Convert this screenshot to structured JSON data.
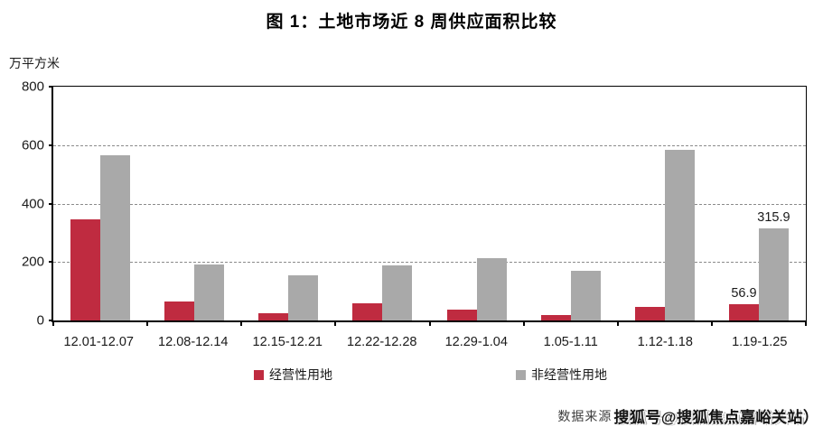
{
  "page": {
    "footer": {
      "source_prefix": "数据来源",
      "watermark": "搜狐号@搜狐焦点嘉峪关站",
      "suffix": "）"
    }
  },
  "chart_data": {
    "type": "bar",
    "title": "图 1：土地市场近 8 周供应面积比较",
    "ylabel_unit": "万平方米",
    "ylim": [
      0,
      800
    ],
    "yticks": [
      0,
      200,
      400,
      600,
      800
    ],
    "grid": "horizontal-dashed",
    "legend_position": "bottom",
    "categories": [
      "12.01-12.07",
      "12.08-12.14",
      "12.15-12.21",
      "12.22-12.28",
      "12.29-1.04",
      "1.05-1.11",
      "1.12-1.18",
      "1.19-1.25"
    ],
    "series": [
      {
        "name": "经营性用地",
        "color": "#bf2b40",
        "values": [
          345,
          66,
          24,
          60,
          36,
          20,
          45,
          56.9
        ]
      },
      {
        "name": "非经营性用地",
        "color": "#a9a9a9",
        "values": [
          565,
          192,
          155,
          188,
          213,
          170,
          585,
          315.9
        ]
      }
    ],
    "data_labels": [
      {
        "series": 0,
        "category_index": 7,
        "text": "56.9"
      },
      {
        "series": 1,
        "category_index": 7,
        "text": "315.9"
      }
    ]
  }
}
